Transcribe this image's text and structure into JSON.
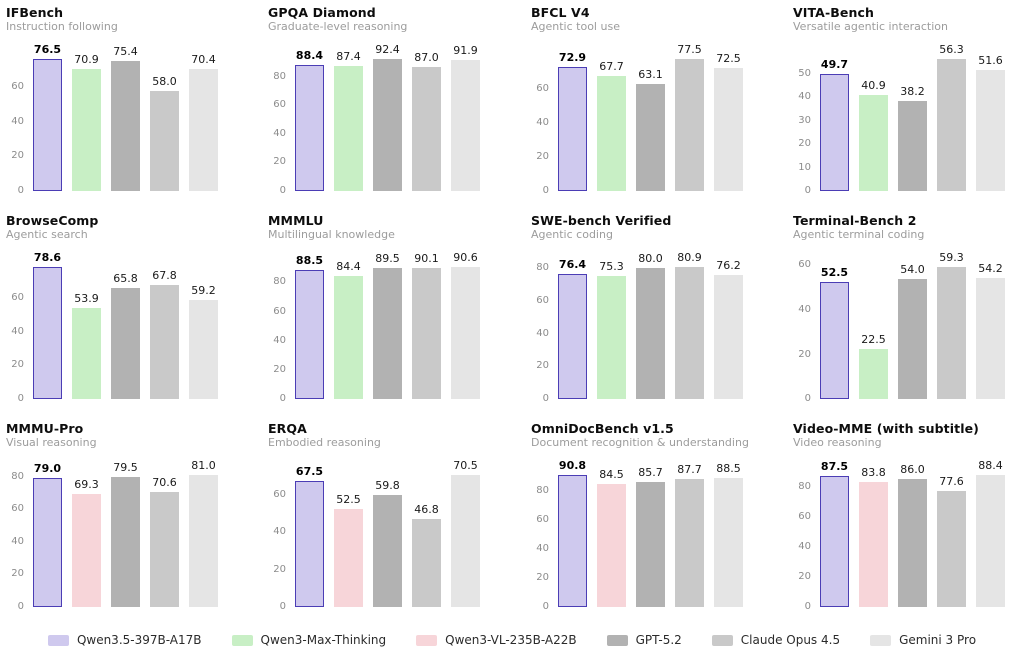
{
  "legend": {
    "position": "bottom",
    "items": [
      {
        "label": "Qwen3.5-397B-A17B",
        "fill": "#cfc9ee",
        "border": "#4b3db5"
      },
      {
        "label": "Qwen3-Max-Thinking",
        "fill": "#c8efc5",
        "border": null
      },
      {
        "label": "Qwen3-VL-235B-A22B",
        "fill": "#f7d5d9",
        "border": null
      },
      {
        "label": "GPT-5.2",
        "fill": "#b2b2b2",
        "border": null
      },
      {
        "label": "Claude Opus 4.5",
        "fill": "#c9c9c9",
        "border": null
      },
      {
        "label": "Gemini 3 Pro",
        "fill": "#e5e5e5",
        "border": null
      }
    ]
  },
  "chart_data": [
    {
      "type": "bar",
      "title": "IFBench",
      "subtitle": "Instruction following",
      "models": [
        0,
        1,
        3,
        4,
        5
      ],
      "values": [
        76.5,
        70.9,
        75.4,
        58.0,
        70.4
      ],
      "yticks": [
        0,
        20,
        40,
        60
      ],
      "ylim": [
        0,
        81.1
      ],
      "grid": false
    },
    {
      "type": "bar",
      "title": "GPQA Diamond",
      "subtitle": "Graduate-level reasoning",
      "models": [
        0,
        1,
        3,
        4,
        5
      ],
      "values": [
        88.4,
        87.4,
        92.4,
        87.0,
        91.9
      ],
      "yticks": [
        0,
        20,
        40,
        60,
        80
      ],
      "ylim": [
        0,
        97.9
      ],
      "grid": false
    },
    {
      "type": "bar",
      "title": "BFCL V4",
      "subtitle": "Agentic tool use",
      "models": [
        0,
        1,
        3,
        4,
        5
      ],
      "values": [
        72.9,
        67.7,
        63.1,
        77.5,
        72.5
      ],
      "yticks": [
        0,
        20,
        40,
        60
      ],
      "ylim": [
        0,
        82.2
      ],
      "grid": false
    },
    {
      "type": "bar",
      "title": "VITA-Bench",
      "subtitle": "Versatile agentic interaction",
      "models": [
        0,
        1,
        3,
        4,
        5
      ],
      "values": [
        49.7,
        40.9,
        38.2,
        56.3,
        51.6
      ],
      "yticks": [
        0,
        10,
        20,
        30,
        40,
        50
      ],
      "ylim": [
        0,
        59.7
      ],
      "grid": false
    },
    {
      "type": "bar",
      "title": "BrowseComp",
      "subtitle": "Agentic search",
      "models": [
        0,
        1,
        3,
        4,
        5
      ],
      "values": [
        78.6,
        53.9,
        65.8,
        67.8,
        59.2
      ],
      "yticks": [
        0,
        20,
        40,
        60
      ],
      "ylim": [
        0,
        83.3
      ],
      "grid": false
    },
    {
      "type": "bar",
      "title": "MMMLU",
      "subtitle": "Multilingual knowledge",
      "models": [
        0,
        1,
        3,
        4,
        5
      ],
      "values": [
        88.5,
        84.4,
        89.5,
        90.1,
        90.6
      ],
      "yticks": [
        0,
        20,
        40,
        60,
        80
      ],
      "ylim": [
        0,
        96.0
      ],
      "grid": false
    },
    {
      "type": "bar",
      "title": "SWE-bench Verified",
      "subtitle": "Agentic coding",
      "models": [
        0,
        1,
        3,
        4,
        5
      ],
      "values": [
        76.4,
        75.3,
        80.0,
        80.9,
        76.2
      ],
      "yticks": [
        0,
        20,
        40,
        60,
        80
      ],
      "ylim": [
        0,
        85.8
      ],
      "grid": false
    },
    {
      "type": "bar",
      "title": "Terminal-Bench 2",
      "subtitle": "Agentic terminal coding",
      "models": [
        0,
        1,
        3,
        4,
        5
      ],
      "values": [
        52.5,
        22.5,
        54.0,
        59.3,
        54.2
      ],
      "yticks": [
        0,
        20,
        40,
        60
      ],
      "ylim": [
        0,
        62.9
      ],
      "grid": false
    },
    {
      "type": "bar",
      "title": "MMMU-Pro",
      "subtitle": "Visual reasoning",
      "models": [
        0,
        2,
        3,
        4,
        5
      ],
      "values": [
        79.0,
        69.3,
        79.5,
        70.6,
        81.0
      ],
      "yticks": [
        0,
        20,
        40,
        60,
        80
      ],
      "ylim": [
        0,
        85.9
      ],
      "grid": false
    },
    {
      "type": "bar",
      "title": "ERQA",
      "subtitle": "Embodied reasoning",
      "models": [
        0,
        2,
        3,
        4,
        5
      ],
      "values": [
        67.5,
        52.5,
        59.8,
        46.8,
        70.5
      ],
      "yticks": [
        0,
        20,
        40,
        60
      ],
      "ylim": [
        0,
        74.7
      ],
      "grid": false
    },
    {
      "type": "bar",
      "title": "OmniDocBench v1.5",
      "subtitle": "Document recognition & understanding",
      "models": [
        0,
        2,
        3,
        4,
        5
      ],
      "values": [
        90.8,
        84.5,
        85.7,
        87.7,
        88.5
      ],
      "yticks": [
        0,
        20,
        40,
        60,
        80
      ],
      "ylim": [
        0,
        96.2
      ],
      "grid": false
    },
    {
      "type": "bar",
      "title": "Video-MME (with subtitle)",
      "subtitle": "Video reasoning",
      "models": [
        0,
        2,
        3,
        4,
        5
      ],
      "values": [
        87.5,
        83.8,
        86.0,
        77.6,
        88.4
      ],
      "yticks": [
        0,
        20,
        40,
        60,
        80
      ],
      "ylim": [
        0,
        93.7
      ],
      "grid": false
    }
  ]
}
